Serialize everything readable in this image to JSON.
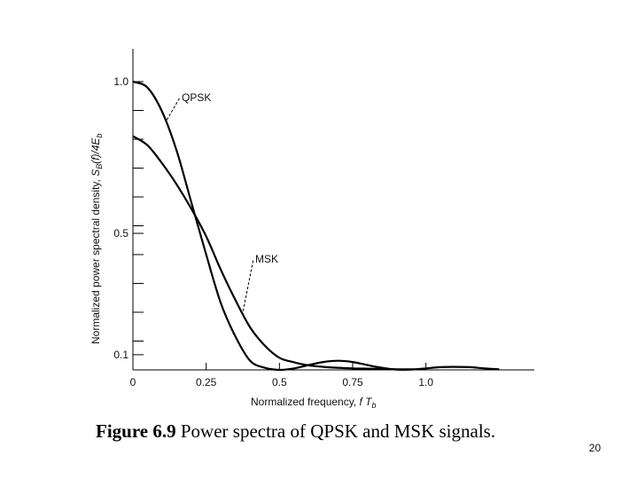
{
  "chart_data": {
    "type": "line",
    "xlabel": "Normalized frequency, f T_b",
    "ylabel": "Normalized power spectral density, S_B(f)/4E_b",
    "xlim": [
      0,
      1.37
    ],
    "ylim": [
      0.05,
      1.0
    ],
    "grid": false,
    "x_ticks": [
      {
        "value": 0,
        "label": "0"
      },
      {
        "value": 0.25,
        "label": "0.25"
      },
      {
        "value": 0.5,
        "label": "0.5"
      },
      {
        "value": 0.75,
        "label": "0.75"
      },
      {
        "value": 1.0,
        "label": "1.0"
      }
    ],
    "y_ticks": [
      {
        "value": 1.0,
        "label": "1.0"
      },
      {
        "value": 0.5,
        "label": "0.5"
      },
      {
        "value": 0.1,
        "label": "0.1"
      }
    ],
    "series": [
      {
        "name": "QPSK",
        "x": [
          0,
          0.05,
          0.1,
          0.15,
          0.2,
          0.25,
          0.3,
          0.35,
          0.4,
          0.45,
          0.5,
          0.55,
          0.6,
          0.65,
          0.7,
          0.75,
          0.8,
          0.85,
          0.9,
          0.95,
          1.0,
          1.05,
          1.1,
          1.15,
          1.2,
          1.25
        ],
        "y": [
          1.0,
          0.98,
          0.9,
          0.77,
          0.6,
          0.43,
          0.27,
          0.16,
          0.08,
          0.057,
          0.05,
          0.055,
          0.066,
          0.076,
          0.08,
          0.076,
          0.066,
          0.057,
          0.051,
          0.051,
          0.055,
          0.059,
          0.06,
          0.059,
          0.055,
          0.052
        ]
      },
      {
        "name": "MSK",
        "x": [
          0,
          0.05,
          0.1,
          0.15,
          0.2,
          0.25,
          0.3,
          0.35,
          0.4,
          0.45,
          0.5,
          0.55,
          0.6,
          0.65,
          0.7,
          0.75,
          0.8,
          0.85,
          0.9,
          0.95,
          1.0
        ],
        "y": [
          0.82,
          0.79,
          0.73,
          0.66,
          0.58,
          0.49,
          0.38,
          0.28,
          0.19,
          0.13,
          0.09,
          0.075,
          0.065,
          0.06,
          0.057,
          0.055,
          0.054,
          0.053,
          0.052,
          0.052,
          0.052
        ]
      }
    ],
    "annotations": [
      {
        "text": "QPSK",
        "target_series": "QPSK"
      },
      {
        "text": "MSK",
        "target_series": "MSK"
      }
    ]
  },
  "caption": {
    "figure_label": "Figure 6.9",
    "text": " Power spectra of QPSK and MSK signals."
  },
  "page_number": "20"
}
